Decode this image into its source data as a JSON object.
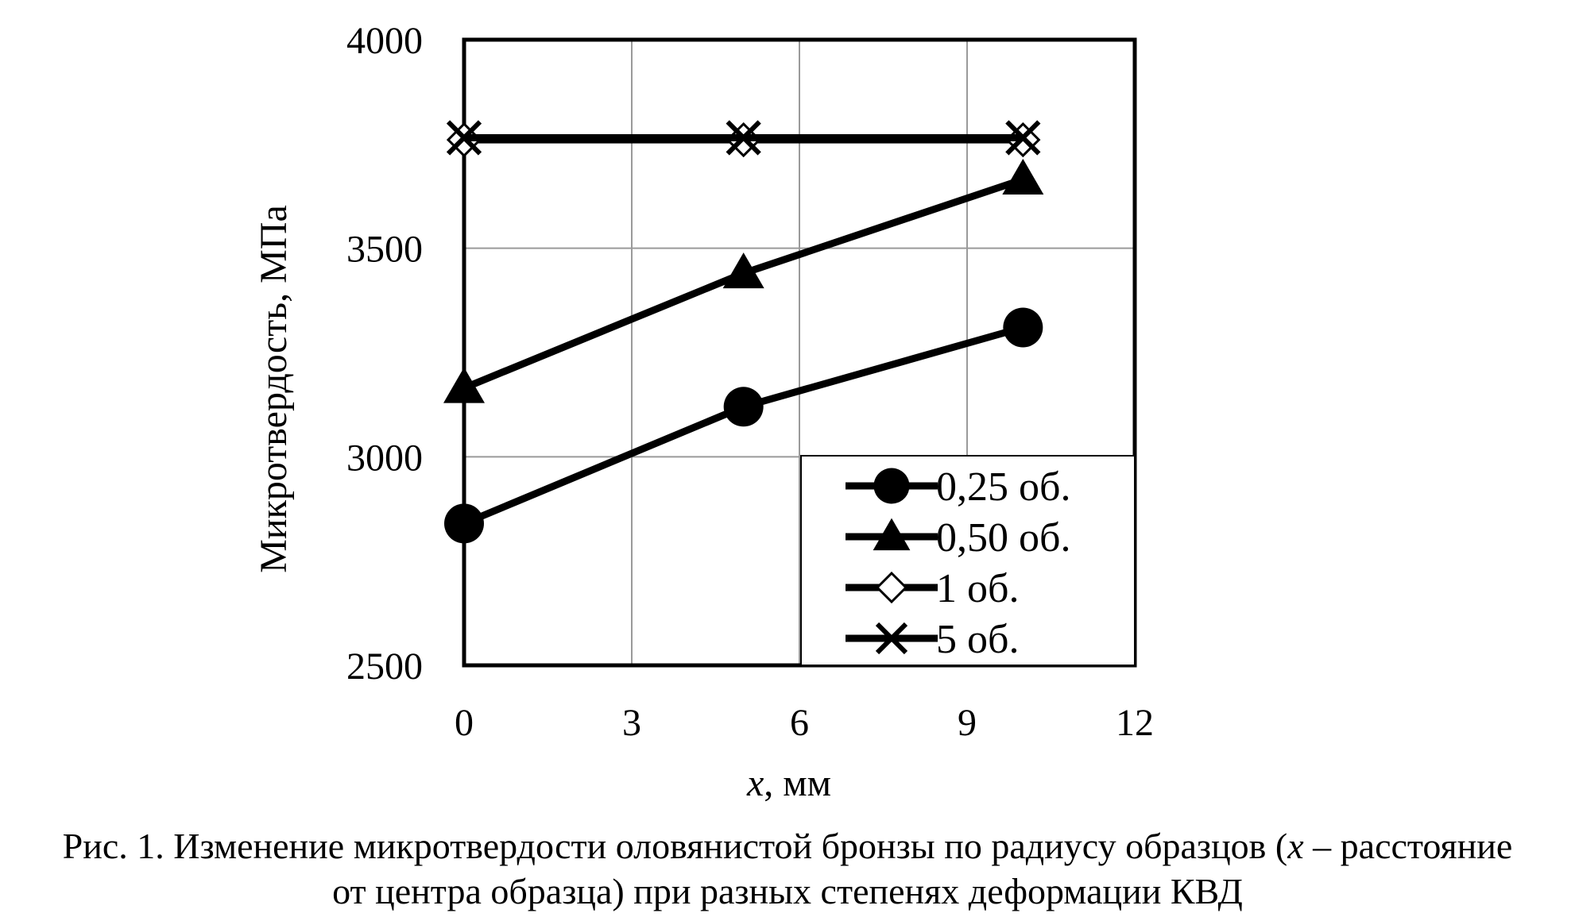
{
  "chart_data": {
    "type": "line",
    "title": "",
    "xlabel_var": "x",
    "xlabel_unit": ", мм",
    "ylabel": "Микротвердость, МПа",
    "xlim": [
      0,
      12
    ],
    "ylim": [
      2500,
      4000
    ],
    "xticks": [
      0,
      3,
      6,
      9,
      12
    ],
    "yticks": [
      2500,
      3000,
      3500,
      4000
    ],
    "xtick_labels": [
      "0",
      "3",
      "6",
      "9",
      "12"
    ],
    "ytick_labels": [
      "2500",
      "3000",
      "3500",
      "4000"
    ],
    "grid": true,
    "legend_position": "bottom-right",
    "x": [
      0,
      5,
      10
    ],
    "series": [
      {
        "name": "0,25 об.",
        "marker": "circle",
        "values": [
          2840,
          3120,
          3310
        ]
      },
      {
        "name": "0,50 об.",
        "marker": "triangle",
        "values": [
          3165,
          3440,
          3665
        ]
      },
      {
        "name": "1 об.",
        "marker": "diamond-open",
        "values": [
          3760,
          3760,
          3760
        ]
      },
      {
        "name": "5 об.",
        "marker": "x-cross",
        "values": [
          3765,
          3765,
          3765
        ]
      }
    ]
  },
  "caption": {
    "line1_a": "Рис. 1. Изменение микротвердости оловянистой бронзы по радиусу образцов (",
    "line1_var": "x",
    "line1_b": " – расстояние",
    "line2": "от центра образца) при разных степенях деформации КВД"
  },
  "colors": {
    "line": "#000000",
    "grid": "#9a9a9a",
    "background": "#ffffff"
  }
}
